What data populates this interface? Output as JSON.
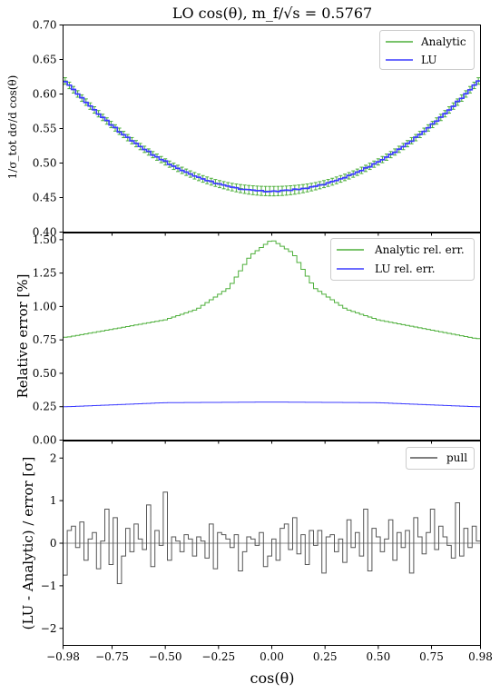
{
  "figure": {
    "title": "LO cos(θ), m_f/√s = 0.5767",
    "xlabel": "cos(θ)"
  },
  "colors": {
    "analytic": "#4daf3a",
    "lu": "#3b3bff",
    "pull": "#555555"
  },
  "chart_data": [
    {
      "type": "line",
      "panel": "distribution",
      "ylabel": "1/σ_tot dσ/d cos(θ)",
      "xlim": [
        -0.98,
        0.98
      ],
      "ylim": [
        0.4,
        0.7
      ],
      "xticks": [
        "−0.98",
        "−0.75",
        "−0.50",
        "−0.25",
        "0.00",
        "0.25",
        "0.50",
        "0.75",
        "0.98"
      ],
      "yticks": [
        "0.40",
        "0.45",
        "0.50",
        "0.55",
        "0.60",
        "0.65",
        "0.70"
      ],
      "legend": "top-right",
      "series": [
        {
          "name": "Analytic",
          "style": "step with error bars",
          "formula": "0.4593 + 0.1695·x²",
          "rel_error_percent": "see relative-error panel"
        },
        {
          "name": "LU",
          "style": "step with error bars",
          "formula": "0.4593 + 0.1695·x²"
        }
      ]
    },
    {
      "type": "line",
      "panel": "relative-error",
      "ylabel": "Relative error [%]",
      "xlim": [
        -0.98,
        0.98
      ],
      "ylim": [
        0.0,
        1.55
      ],
      "yticks": [
        "0.00",
        "0.25",
        "0.50",
        "0.75",
        "1.00",
        "1.25",
        "1.50"
      ],
      "legend": "top-right",
      "series": [
        {
          "name": "Analytic rel. err.",
          "x_center": [
            -0.96,
            -0.5,
            -0.35,
            -0.2,
            -0.1,
            0.0,
            0.1,
            0.2,
            0.35,
            0.5,
            0.96
          ],
          "values": [
            0.77,
            0.9,
            0.98,
            1.14,
            1.38,
            1.5,
            1.4,
            1.14,
            0.98,
            0.9,
            0.76
          ]
        },
        {
          "name": "LU rel. err.",
          "x_center": [
            -0.96,
            -0.5,
            0.0,
            0.5,
            0.96
          ],
          "values": [
            0.25,
            0.28,
            0.285,
            0.28,
            0.25
          ]
        }
      ]
    },
    {
      "type": "line",
      "panel": "pull",
      "ylabel": "(LU - Analytic) / error [σ]",
      "xlim": [
        -0.98,
        0.98
      ],
      "ylim": [
        -2.4,
        2.4
      ],
      "yticks": [
        "−2",
        "−1",
        "0",
        "1",
        "2"
      ],
      "legend": "top-right",
      "series": [
        {
          "name": "pull",
          "values": [
            -0.75,
            0.3,
            0.4,
            -0.1,
            0.5,
            -0.4,
            0.1,
            0.25,
            -0.6,
            0.05,
            0.8,
            -0.5,
            0.6,
            -0.95,
            -0.3,
            0.35,
            -0.2,
            0.45,
            0.1,
            -0.15,
            0.9,
            -0.55,
            0.3,
            -0.05,
            1.2,
            -0.4,
            0.15,
            0.05,
            -0.2,
            0.2,
            0.1,
            -0.3,
            0.15,
            0.05,
            -0.35,
            0.45,
            -0.6,
            0.25,
            0.2,
            0.1,
            -0.1,
            0.2,
            -0.65,
            -0.2,
            0.15,
            0.1,
            -0.05,
            0.25,
            -0.55,
            -0.3,
            0.1,
            -0.4,
            0.35,
            0.45,
            -0.15,
            0.6,
            -0.25,
            0.2,
            -0.5,
            0.3,
            -0.05,
            0.3,
            -0.7,
            0.15,
            0.2,
            -0.2,
            0.1,
            -0.45,
            0.55,
            -0.1,
            0.25,
            -0.3,
            0.8,
            -0.65,
            0.35,
            0.15,
            -0.2,
            0.1,
            0.55,
            -0.4,
            0.25,
            -0.1,
            0.3,
            -0.7,
            0.6,
            0.15,
            -0.25,
            0.25,
            0.8,
            -0.15,
            0.4,
            0.15,
            -0.05,
            -0.35,
            0.95,
            -0.3,
            0.35,
            -0.1,
            0.4,
            0.05
          ]
        }
      ]
    }
  ]
}
